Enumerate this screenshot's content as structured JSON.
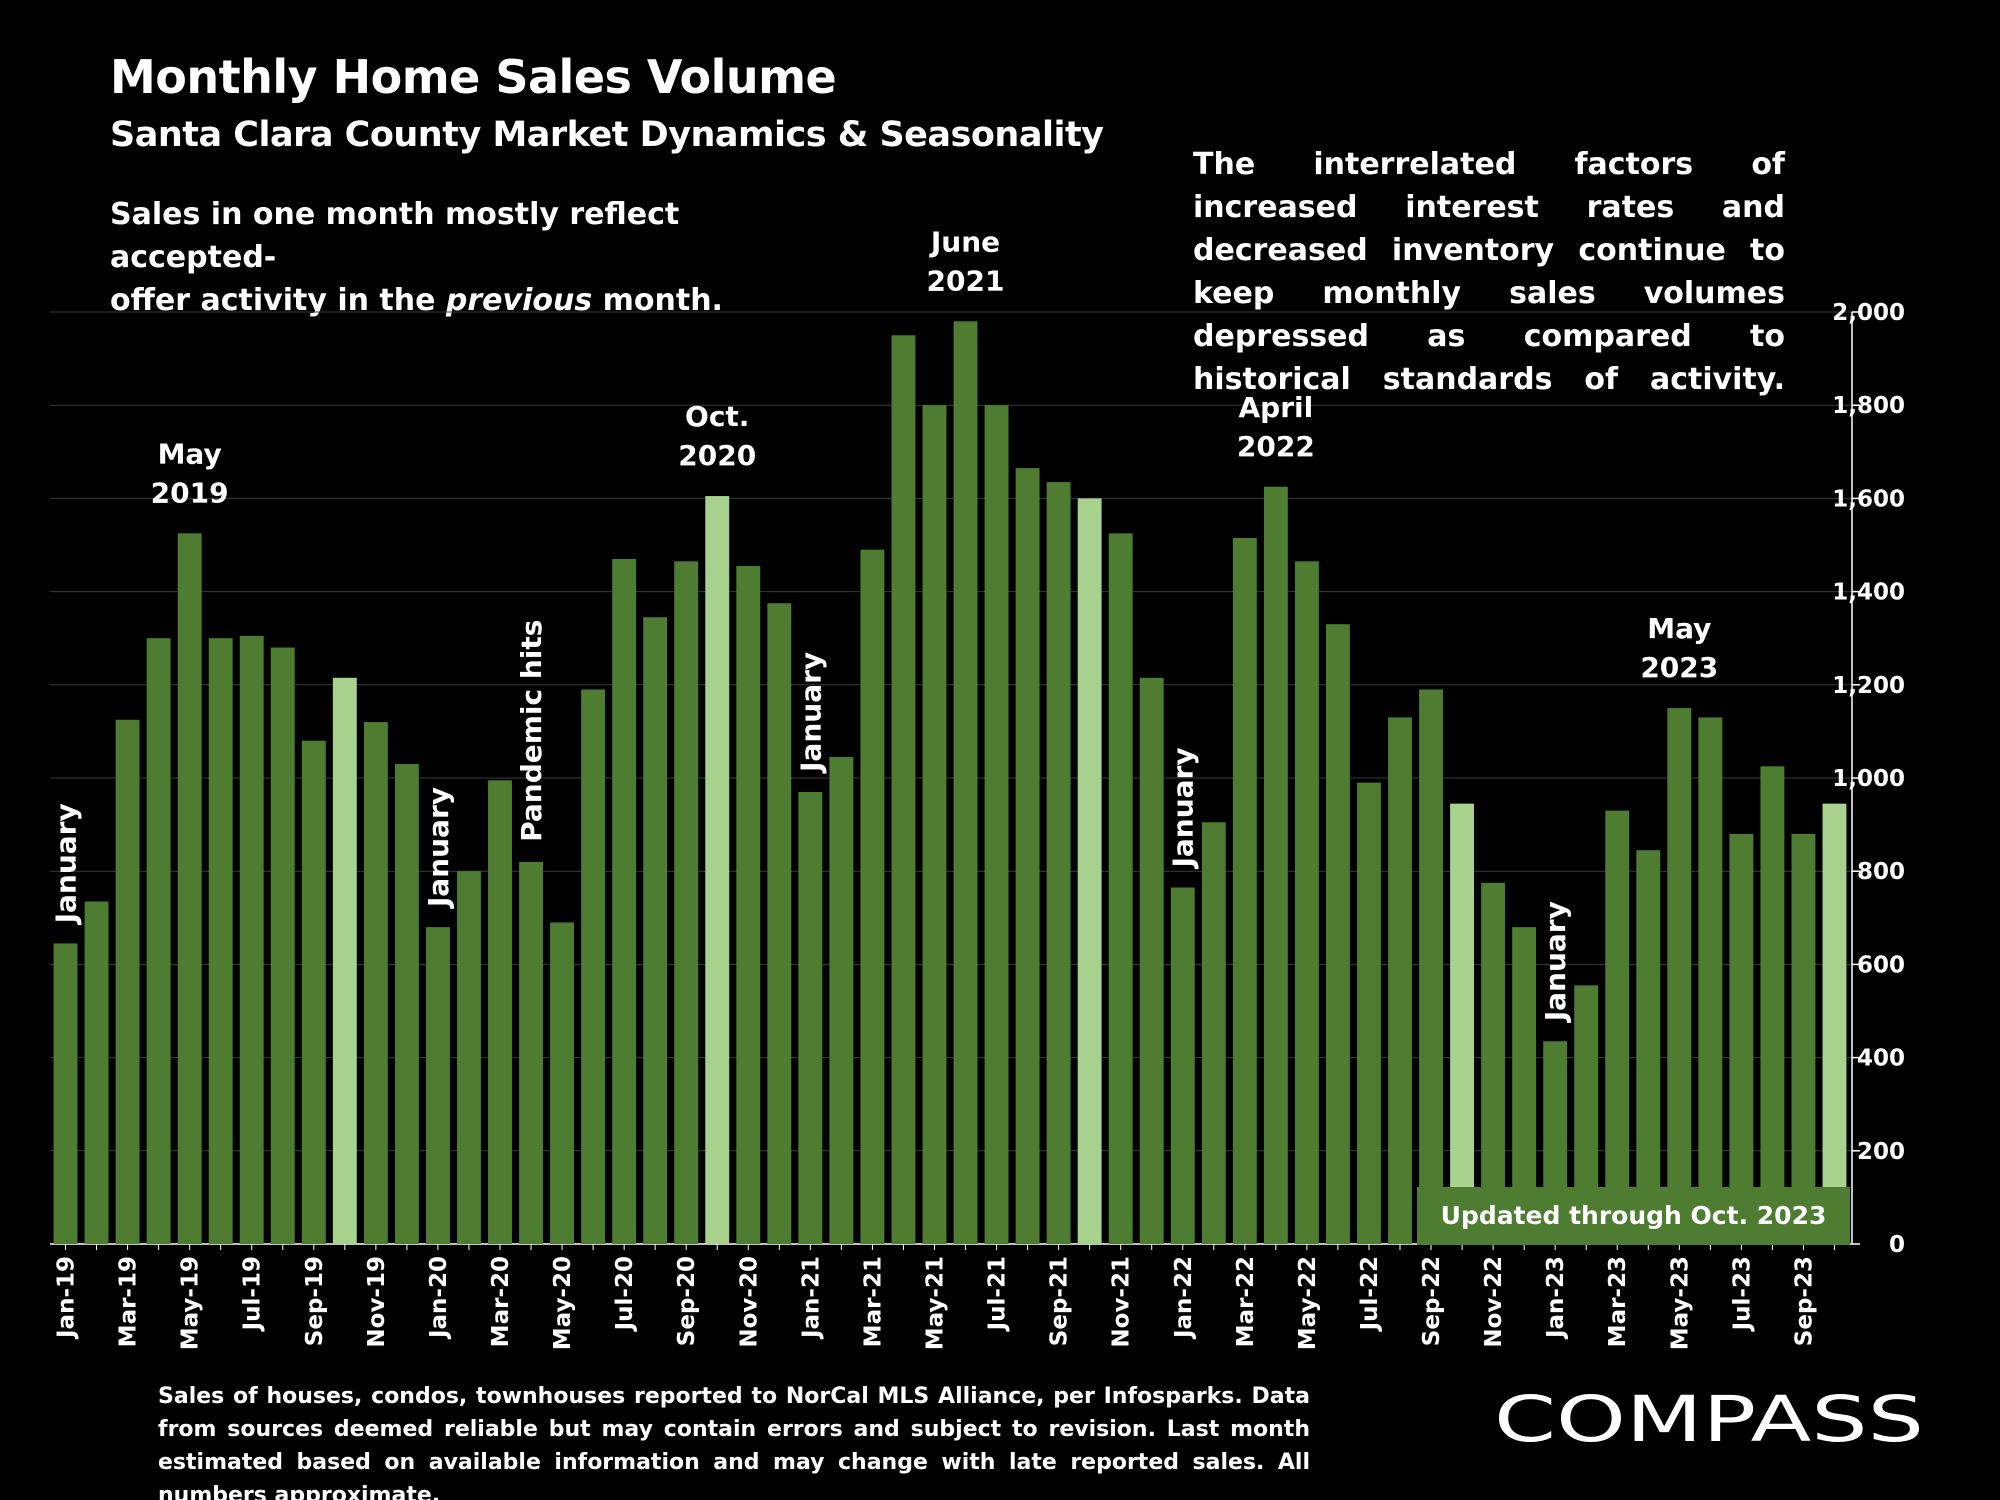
{
  "title": "Monthly Home Sales Volume",
  "subtitle": "Santa Clara County Market Dynamics & Seasonality",
  "note_left": {
    "line1": "Sales in one month mostly reflect accepted-",
    "line2_pre": "offer activity in the ",
    "line2_em": "previous",
    "line2_post": " month."
  },
  "note_right": "The interrelated factors of increased interest rates and decreased inventory continue to keep monthly sales volumes depressed as compared to historical standards of activity.",
  "footer_note": "Sales of houses, condos, townhouses reported to NorCal MLS Alliance, per Infosparks. Data from sources deemed reliable but may contain errors and subject to revision. Last month estimated based on available information and may change with late reported sales. All numbers approximate.",
  "updated_label": "Updated through Oct. 2023",
  "logo_text": "COMPASS",
  "colors": {
    "bar": "#4e7d32",
    "highlight": "#a9d18e",
    "background": "#000000",
    "grid": "#3a3a3a",
    "text": "#ffffff"
  },
  "chart_data": {
    "type": "bar",
    "title": "Monthly Home Sales Volume",
    "ylim": [
      0,
      2000
    ],
    "y_ticks": [
      "0",
      "200",
      "400",
      "600",
      "800",
      "1,000",
      "1,200",
      "1,400",
      "1,600",
      "1,800",
      "2,000"
    ],
    "y_axis_side": "right",
    "grid": true,
    "categories": [
      "Jan-19",
      "Feb-19",
      "Mar-19",
      "Apr-19",
      "May-19",
      "Jun-19",
      "Jul-19",
      "Aug-19",
      "Sep-19",
      "Oct-19",
      "Nov-19",
      "Dec-19",
      "Jan-20",
      "Feb-20",
      "Mar-20",
      "Apr-20",
      "May-20",
      "Jun-20",
      "Jul-20",
      "Aug-20",
      "Sep-20",
      "Oct-20",
      "Nov-20",
      "Dec-20",
      "Jan-21",
      "Feb-21",
      "Mar-21",
      "Apr-21",
      "May-21",
      "Jun-21",
      "Jul-21",
      "Aug-21",
      "Sep-21",
      "Oct-21",
      "Nov-21",
      "Dec-21",
      "Jan-22",
      "Feb-22",
      "Mar-22",
      "Apr-22",
      "May-22",
      "Jun-22",
      "Jul-22",
      "Aug-22",
      "Sep-22",
      "Oct-22",
      "Nov-22",
      "Dec-22",
      "Jan-23",
      "Feb-23",
      "Mar-23",
      "Apr-23",
      "May-23",
      "Jun-23",
      "Jul-23",
      "Aug-23",
      "Sep-23",
      "Oct-23"
    ],
    "x_tick_labels": [
      "Jan-19",
      "",
      "Mar-19",
      "",
      "May-19",
      "",
      "Jul-19",
      "",
      "Sep-19",
      "",
      "Nov-19",
      "",
      "Jan-20",
      "",
      "Mar-20",
      "",
      "May-20",
      "",
      "Jul-20",
      "",
      "Sep-20",
      "",
      "Nov-20",
      "",
      "Jan-21",
      "",
      "Mar-21",
      "",
      "May-21",
      "",
      "Jul-21",
      "",
      "Sep-21",
      "",
      "Nov-21",
      "",
      "Jan-22",
      "",
      "Mar-22",
      "",
      "May-22",
      "",
      "Jul-22",
      "",
      "Sep-22",
      "",
      "Nov-22",
      "",
      "Jan-23",
      "",
      "Mar-23",
      "",
      "May-23",
      "",
      "Jul-23",
      "",
      "Sep-23",
      ""
    ],
    "values": [
      645,
      735,
      1125,
      1300,
      1525,
      1300,
      1305,
      1280,
      1080,
      1215,
      1120,
      1030,
      680,
      800,
      995,
      820,
      690,
      1190,
      1470,
      1345,
      1465,
      1605,
      1455,
      1375,
      970,
      1045,
      1490,
      1950,
      1800,
      1980,
      1800,
      1665,
      1635,
      1600,
      1525,
      1215,
      765,
      905,
      1515,
      1625,
      1465,
      1330,
      990,
      1130,
      1190,
      945,
      775,
      680,
      435,
      555,
      930,
      845,
      1150,
      1130,
      880,
      1025,
      880,
      945
    ],
    "highlighted": [
      "Oct-19",
      "Oct-20",
      "Oct-21",
      "Oct-22",
      "Oct-23"
    ],
    "annotations": [
      {
        "text": "January",
        "at": "Jan-19",
        "orientation": "vertical"
      },
      {
        "text": "May",
        "text2": "2019",
        "at": "May-19",
        "orientation": "horizontal"
      },
      {
        "text": "January",
        "at": "Jan-20",
        "orientation": "vertical"
      },
      {
        "text": "Pandemic hits",
        "at": "Apr-20",
        "orientation": "vertical"
      },
      {
        "text": "Oct.",
        "text2": "2020",
        "at": "Oct-20",
        "orientation": "horizontal"
      },
      {
        "text": "January",
        "at": "Jan-21",
        "orientation": "vertical"
      },
      {
        "text": "June",
        "text2": "2021",
        "at": "Jun-21",
        "orientation": "horizontal"
      },
      {
        "text": "January",
        "at": "Jan-22",
        "orientation": "vertical"
      },
      {
        "text": "April",
        "text2": "2022",
        "at": "Apr-22",
        "orientation": "horizontal"
      },
      {
        "text": "January",
        "at": "Jan-23",
        "orientation": "vertical"
      },
      {
        "text": "May",
        "text2": "2023",
        "at": "May-23",
        "orientation": "horizontal"
      }
    ]
  }
}
